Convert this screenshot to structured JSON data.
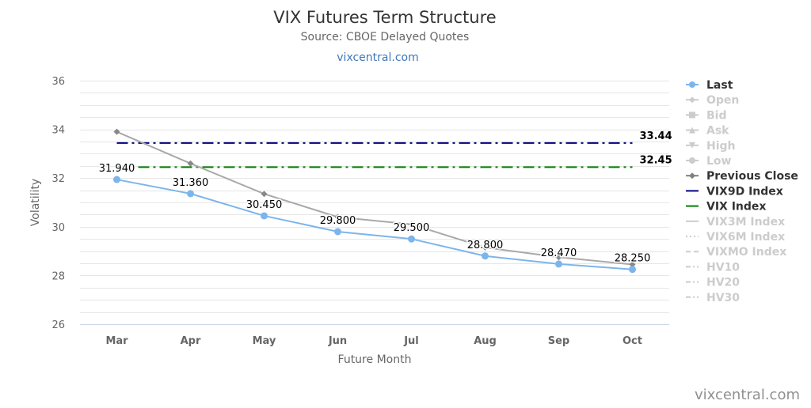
{
  "chart_data": {
    "type": "line",
    "title": "VIX Futures Term Structure",
    "subtitle": "Source: CBOE Delayed Quotes",
    "link_text": "vixcentral.com",
    "credits": "vixcentral.com",
    "xlabel": "Future Month",
    "ylabel": "Volatility",
    "ylim": [
      26,
      36
    ],
    "y_ticks": [
      26,
      28,
      30,
      32,
      34,
      36
    ],
    "categories": [
      "Mar",
      "Apr",
      "May",
      "Jun",
      "Jul",
      "Aug",
      "Sep",
      "Oct"
    ],
    "grid": "horizontal",
    "legend_position": "right",
    "series": [
      {
        "name": "Last",
        "values": [
          31.94,
          31.36,
          30.45,
          29.8,
          29.5,
          28.8,
          28.47,
          28.25
        ],
        "labels": [
          "31.940",
          "31.360",
          "30.450",
          "29.800",
          "29.500",
          "28.800",
          "28.470",
          "28.250"
        ],
        "color": "#7cb5ec",
        "visible": true
      },
      {
        "name": "Previous Close",
        "values": [
          33.9,
          32.6,
          31.35,
          30.4,
          30.1,
          29.15,
          28.75,
          28.45
        ],
        "color": "#a9a9a9",
        "visible": true
      },
      {
        "name": "VIX9D Index",
        "value": 33.44,
        "label": "33.44",
        "color": "#000080",
        "visible": true
      },
      {
        "name": "VIX Index",
        "value": 32.45,
        "label": "32.45",
        "color": "#008000",
        "visible": true
      }
    ]
  },
  "legend": {
    "items": [
      {
        "name": "Last",
        "visible": true,
        "symbol": "circle",
        "color": "#7cb5ec"
      },
      {
        "name": "Open",
        "visible": false,
        "symbol": "diamond"
      },
      {
        "name": "Bid",
        "visible": false,
        "symbol": "square"
      },
      {
        "name": "Ask",
        "visible": false,
        "symbol": "triangle"
      },
      {
        "name": "High",
        "visible": false,
        "symbol": "triangle-down"
      },
      {
        "name": "Low",
        "visible": false,
        "symbol": "circle"
      },
      {
        "name": "Previous Close",
        "visible": true,
        "symbol": "diamond",
        "color": "#808080"
      },
      {
        "name": "VIX9D Index",
        "visible": true,
        "symbol": "line",
        "color": "#000080"
      },
      {
        "name": "VIX Index",
        "visible": true,
        "symbol": "line",
        "color": "#008000"
      },
      {
        "name": "VIX3M Index",
        "visible": false,
        "symbol": "line"
      },
      {
        "name": "VIX6M Index",
        "visible": false,
        "symbol": "dotted"
      },
      {
        "name": "VIXMO Index",
        "visible": false,
        "symbol": "dash"
      },
      {
        "name": "HV10",
        "visible": false,
        "symbol": "dashdot"
      },
      {
        "name": "HV20",
        "visible": false,
        "symbol": "dashdot"
      },
      {
        "name": "HV30",
        "visible": false,
        "symbol": "dashdot"
      }
    ]
  },
  "colors": {
    "title": "#333333",
    "subtitle": "#666666",
    "link": "#3e78b8",
    "grid": "#e6e6e6",
    "axis_text": "#666666",
    "hidden_legend": "#cccccc",
    "credits": "#909090"
  }
}
